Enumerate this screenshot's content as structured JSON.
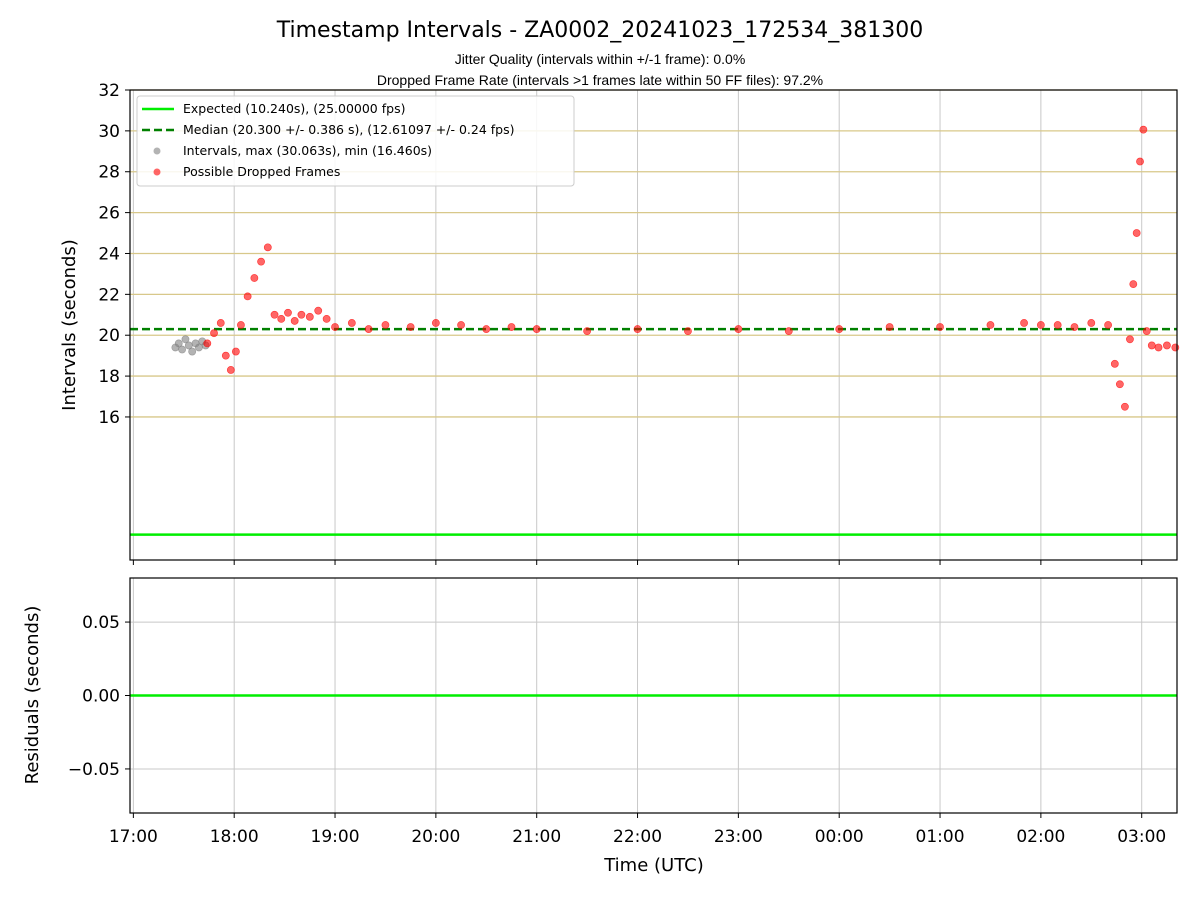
{
  "chart_data": [
    {
      "type": "scatter",
      "title": "Timestamp Intervals - ZA0002_20241023_172534_381300",
      "subtitles": [
        "Jitter Quality (intervals within +/-1 frame): 0.0%",
        "Dropped Frame Rate (intervals >1 frames late within 50 FF files): 97.2%"
      ],
      "xlabel": "",
      "ylabel": "Intervals (seconds)",
      "x_unit": "time (UTC, HH:MM, start 2024-10-23)",
      "xlim": [
        "16:58",
        "03:21"
      ],
      "ylim": [
        9.0,
        32.0
      ],
      "yticks": [
        16,
        18,
        20,
        22,
        24,
        26,
        28,
        30,
        32
      ],
      "grid": true,
      "legend_position": "upper-left",
      "legend": [
        "Expected (10.240s), (25.00000 fps)",
        "Median (20.300 +/- 0.386 s), (12.61097 +/- 0.24 fps)",
        "Intervals, max (30.063s), min (16.460s)",
        "Possible Dropped Frames"
      ],
      "series": [
        {
          "name": "Expected (10.240s), (25.00000 fps)",
          "kind": "hline",
          "y": 10.24,
          "color": "#00ee00",
          "style": "solid"
        },
        {
          "name": "Median (20.300 +/- 0.386 s), (12.61097 +/- 0.24 fps)",
          "kind": "hline",
          "y": 20.3,
          "color": "#008000",
          "style": "dashed"
        },
        {
          "name": "Intervals, max (30.063s), min (16.460s)",
          "kind": "scatter",
          "color": "#808080",
          "x": [
            "17:25",
            "17:27",
            "17:29",
            "17:31",
            "17:33",
            "17:35",
            "17:37",
            "17:39",
            "17:41",
            "17:43"
          ],
          "y": [
            19.4,
            19.6,
            19.3,
            19.8,
            19.5,
            19.2,
            19.6,
            19.4,
            19.7,
            19.5
          ]
        },
        {
          "name": "Possible Dropped Frames",
          "kind": "scatter",
          "color": "#ff0000",
          "x": [
            "17:44",
            "17:48",
            "17:52",
            "17:55",
            "17:58",
            "18:01",
            "18:04",
            "18:08",
            "18:12",
            "18:16",
            "18:20",
            "18:24",
            "18:28",
            "18:32",
            "18:36",
            "18:40",
            "18:45",
            "18:50",
            "18:55",
            "19:00",
            "19:10",
            "19:20",
            "19:30",
            "19:45",
            "20:00",
            "20:15",
            "20:30",
            "20:45",
            "21:00",
            "21:30",
            "22:00",
            "22:30",
            "23:00",
            "23:30",
            "00:00",
            "00:30",
            "01:00",
            "01:30",
            "01:50",
            "02:00",
            "02:10",
            "02:20",
            "02:30",
            "02:40",
            "02:44",
            "02:47",
            "02:50",
            "02:53",
            "02:55",
            "02:57",
            "02:59",
            "03:01",
            "03:03",
            "03:06",
            "03:10",
            "03:15",
            "03:20"
          ],
          "y": [
            19.6,
            20.1,
            20.6,
            19.0,
            18.3,
            19.2,
            20.5,
            21.9,
            22.8,
            23.6,
            24.3,
            21.0,
            20.8,
            21.1,
            20.7,
            21.0,
            20.9,
            21.2,
            20.8,
            20.4,
            20.6,
            20.3,
            20.5,
            20.4,
            20.6,
            20.5,
            20.3,
            20.4,
            20.3,
            20.2,
            20.3,
            20.2,
            20.3,
            20.2,
            20.3,
            20.4,
            20.4,
            20.5,
            20.6,
            20.5,
            20.5,
            20.4,
            20.6,
            20.5,
            18.6,
            17.6,
            16.5,
            19.8,
            22.5,
            25.0,
            28.5,
            30.06,
            20.2,
            19.5,
            19.4,
            19.5,
            19.4
          ]
        }
      ]
    },
    {
      "type": "line",
      "xlabel": "Time (UTC)",
      "ylabel": "Residuals (seconds)",
      "xlim": [
        "16:58",
        "03:21"
      ],
      "xticks": [
        "17:00",
        "18:00",
        "19:00",
        "20:00",
        "21:00",
        "22:00",
        "23:00",
        "00:00",
        "01:00",
        "02:00",
        "03:00"
      ],
      "ylim": [
        -0.08,
        0.08
      ],
      "yticks": [
        0.05,
        0.0,
        -0.05
      ],
      "ytick_labels": [
        "0.05",
        "0.00",
        "−0.05"
      ],
      "grid": true,
      "series": [
        {
          "kind": "hline",
          "y": 0.0,
          "color": "#00ee00",
          "style": "solid"
        }
      ]
    }
  ]
}
